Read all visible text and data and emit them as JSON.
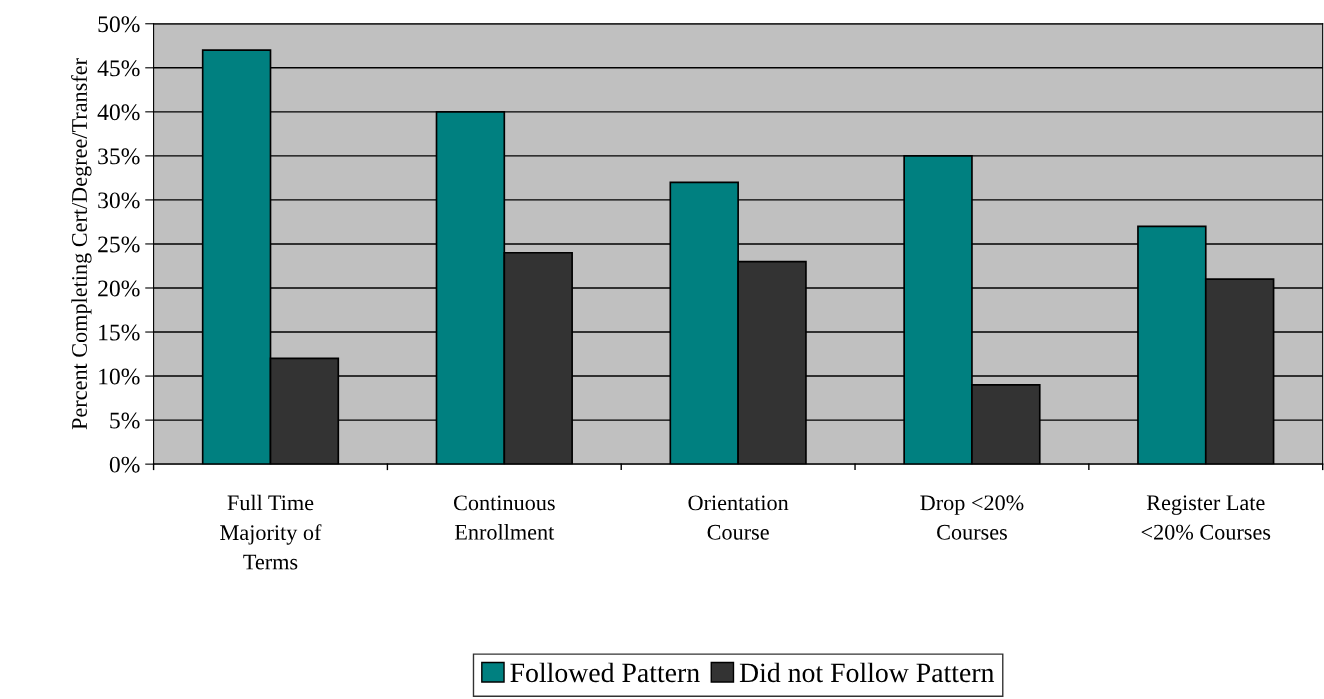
{
  "chart_data": {
    "type": "bar",
    "ylabel": "Percent Completing Cert/Degree/Transfer",
    "categories": [
      "Full Time\nMajority of\nTerms",
      "Continuous\nEnrollment",
      "Orientation\nCourse",
      "Drop <20%\nCourses",
      "Register Late\n<20% Courses"
    ],
    "series": [
      {
        "name": "Followed Pattern",
        "color": "#008080",
        "values": [
          47,
          40,
          32,
          35,
          27
        ]
      },
      {
        "name": "Did not Follow Pattern",
        "color": "#333333",
        "values": [
          12,
          24,
          23,
          9,
          21
        ]
      }
    ],
    "ylim": [
      0,
      50
    ],
    "yticks": [
      {
        "value": 0,
        "label": "0%"
      },
      {
        "value": 5,
        "label": "5%"
      },
      {
        "value": 10,
        "label": "10%"
      },
      {
        "value": 15,
        "label": "15%"
      },
      {
        "value": 20,
        "label": "20%"
      },
      {
        "value": 25,
        "label": "25%"
      },
      {
        "value": 30,
        "label": "30%"
      },
      {
        "value": 35,
        "label": "35%"
      },
      {
        "value": 40,
        "label": "40%"
      },
      {
        "value": 45,
        "label": "45%"
      },
      {
        "value": 50,
        "label": "50%"
      }
    ],
    "grid": "y",
    "legend": "bottom"
  }
}
